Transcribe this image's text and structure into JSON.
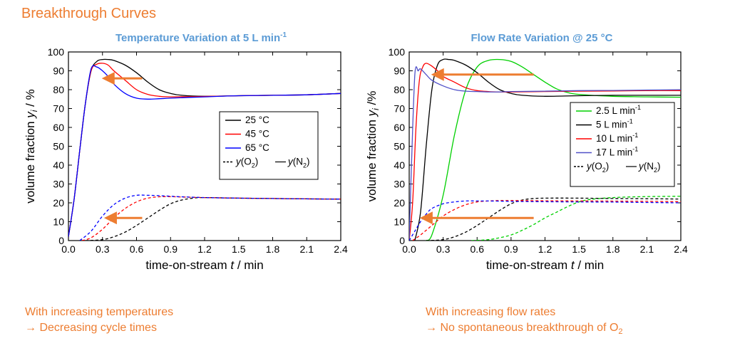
{
  "page": {
    "heading": "Breakthrough Curves",
    "left_note": [
      "With increasing temperatures",
      "→ Decreasing cycle times"
    ],
    "right_note": [
      "With increasing flow rates",
      "→ No spontaneous breakthrough of O",
      "2"
    ]
  },
  "colors": {
    "orange": "#ED7D31",
    "title_blue": "#5B9BD5"
  },
  "chart_data": [
    {
      "type": "line",
      "title": "Temperature Variation at 5 L min",
      "title_sup": "-1",
      "xlabel": "time-on-stream t / min",
      "ylabel": "volume fraction y_i / %",
      "xlim": [
        0,
        2.4
      ],
      "ylim": [
        0,
        100
      ],
      "xticks": [
        "0.0",
        "0.3",
        "0.6",
        "0.9",
        "1.2",
        "1.5",
        "1.8",
        "2.1",
        "2.4"
      ],
      "yticks": [
        "0",
        "10",
        "20",
        "30",
        "40",
        "50",
        "60",
        "70",
        "80",
        "90",
        "100"
      ],
      "legend": {
        "position": "center-right",
        "entries": [
          {
            "label": "25 °C",
            "color": "#000000"
          },
          {
            "label": "45 °C",
            "color": "#FF0000"
          },
          {
            "label": "65 °C",
            "color": "#0000FF"
          }
        ],
        "style_entry": {
          "dashed_label": "y(O",
          "dashed_sub": "2",
          "solid_label": "y(N",
          "solid_sub": "2",
          "close": ")"
        }
      },
      "arrows": [
        {
          "from": [
            0.65,
            86
          ],
          "to": [
            0.3,
            86
          ]
        },
        {
          "from": [
            0.65,
            12
          ],
          "to": [
            0.32,
            12
          ]
        }
      ],
      "series": [
        {
          "name": "25 °C N2",
          "color": "#000000",
          "dash": false,
          "x": [
            0,
            0.05,
            0.1,
            0.15,
            0.2,
            0.25,
            0.3,
            0.35,
            0.4,
            0.5,
            0.6,
            0.7,
            0.8,
            0.9,
            1.0,
            1.2,
            1.5,
            1.8,
            2.1,
            2.4
          ],
          "y": [
            2,
            22,
            48,
            73,
            90,
            95,
            96,
            96,
            95.5,
            93,
            89,
            84,
            80,
            78,
            77,
            76.5,
            76.8,
            77,
            77.3,
            78
          ]
        },
        {
          "name": "45 °C N2",
          "color": "#FF0000",
          "dash": false,
          "x": [
            0,
            0.05,
            0.1,
            0.15,
            0.2,
            0.25,
            0.3,
            0.35,
            0.4,
            0.5,
            0.6,
            0.7,
            0.8,
            0.9,
            1.2,
            1.5,
            1.8,
            2.1,
            2.4
          ],
          "y": [
            2,
            22,
            48,
            73,
            90,
            93.5,
            94,
            93,
            90,
            85,
            80,
            77.5,
            76.5,
            76.2,
            76.4,
            76.8,
            77,
            77.3,
            78
          ]
        },
        {
          "name": "65 °C N2",
          "color": "#0000FF",
          "dash": false,
          "x": [
            0,
            0.05,
            0.1,
            0.15,
            0.2,
            0.25,
            0.3,
            0.35,
            0.4,
            0.5,
            0.6,
            0.7,
            0.8,
            0.9,
            1.2,
            1.5,
            1.8,
            2.1,
            2.4
          ],
          "y": [
            2,
            22,
            48,
            73,
            91,
            92,
            90,
            87,
            83,
            78,
            75.5,
            75,
            75.2,
            75.5,
            76.2,
            76.8,
            77,
            77.3,
            78
          ]
        },
        {
          "name": "25 °C O2",
          "color": "#000000",
          "dash": true,
          "x": [
            0.15,
            0.3,
            0.4,
            0.5,
            0.6,
            0.7,
            0.8,
            0.9,
            1.0,
            1.1,
            1.2,
            1.5,
            1.8,
            2.1,
            2.4
          ],
          "y": [
            0,
            0.5,
            2,
            4.5,
            8,
            12,
            16,
            19.5,
            21.5,
            22.5,
            22.8,
            22.5,
            22.3,
            22.1,
            22
          ]
        },
        {
          "name": "45 °C O2",
          "color": "#FF0000",
          "dash": true,
          "x": [
            0.12,
            0.2,
            0.3,
            0.4,
            0.5,
            0.6,
            0.7,
            0.8,
            0.9,
            1.0,
            1.2,
            1.5,
            1.8,
            2.1,
            2.4
          ],
          "y": [
            0,
            1.5,
            6,
            12,
            17,
            20.5,
            22.5,
            23.2,
            23.3,
            23.1,
            22.8,
            22.5,
            22.3,
            22.1,
            22
          ]
        },
        {
          "name": "65 °C O2",
          "color": "#0000FF",
          "dash": true,
          "x": [
            0.1,
            0.2,
            0.3,
            0.4,
            0.5,
            0.6,
            0.7,
            0.8,
            0.9,
            1.0,
            1.2,
            1.5,
            1.8,
            2.1,
            2.4
          ],
          "y": [
            0,
            5,
            13,
            19,
            22.5,
            24,
            24,
            23.8,
            23.5,
            23.2,
            22.8,
            22.5,
            22.3,
            22.1,
            22
          ]
        }
      ]
    },
    {
      "type": "line",
      "title": "Flow Rate Variation @ 25 °C",
      "title_sup": "",
      "xlabel": "time-on-stream t / min",
      "ylabel": "volume fraction y_i /%",
      "xlim": [
        0,
        2.4
      ],
      "ylim": [
        0,
        100
      ],
      "xticks": [
        "0.0",
        "0.3",
        "0.6",
        "0.9",
        "1.2",
        "1.5",
        "1.8",
        "2.1",
        "2.4"
      ],
      "yticks": [
        "0",
        "10",
        "20",
        "30",
        "40",
        "50",
        "60",
        "70",
        "80",
        "90",
        "100"
      ],
      "legend": {
        "position": "center-right",
        "entries": [
          {
            "label": "2.5 L min",
            "sup": "-1",
            "color": "#00D000"
          },
          {
            "label": "5 L min",
            "sup": "-1",
            "color": "#000000"
          },
          {
            "label": "10 L min",
            "sup": "-1",
            "color": "#FF0000"
          },
          {
            "label": "17 L min",
            "sup": "-1",
            "color": "#5050C8"
          }
        ],
        "style_entry": {
          "dashed_label": "y(O",
          "dashed_sub": "2",
          "solid_label": "y(N",
          "solid_sub": "2",
          "close": ")"
        }
      },
      "arrows": [
        {
          "from": [
            1.1,
            88
          ],
          "to": [
            0.2,
            88
          ]
        },
        {
          "from": [
            1.1,
            12
          ],
          "to": [
            0.1,
            12
          ]
        }
      ],
      "series": [
        {
          "name": "2.5 L/min N2",
          "color": "#00D000",
          "dash": false,
          "x": [
            0.15,
            0.2,
            0.3,
            0.4,
            0.5,
            0.6,
            0.7,
            0.8,
            0.9,
            1.0,
            1.1,
            1.2,
            1.3,
            1.4,
            1.5,
            1.8,
            2.1,
            2.4
          ],
          "y": [
            0,
            3,
            24,
            56,
            80,
            92,
            95.5,
            96,
            95,
            92,
            88,
            84,
            80.5,
            78.5,
            77.5,
            76.5,
            76.2,
            76
          ]
        },
        {
          "name": "5 L/min N2",
          "color": "#000000",
          "dash": false,
          "x": [
            0.05,
            0.1,
            0.15,
            0.2,
            0.25,
            0.3,
            0.35,
            0.4,
            0.5,
            0.6,
            0.7,
            0.8,
            0.9,
            1.0,
            1.2,
            1.5,
            1.8,
            2.1,
            2.4
          ],
          "y": [
            0,
            15,
            50,
            80,
            93,
            96,
            96,
            95.5,
            93,
            89,
            84,
            80,
            78,
            77,
            76.5,
            76.8,
            77,
            77,
            77
          ]
        },
        {
          "name": "10 L/min N2",
          "color": "#FF0000",
          "dash": false,
          "x": [
            0,
            0.03,
            0.06,
            0.09,
            0.12,
            0.15,
            0.2,
            0.25,
            0.3,
            0.4,
            0.5,
            0.6,
            0.7,
            0.8,
            0.9,
            1.2,
            1.5,
            1.8,
            2.1,
            2.4
          ],
          "y": [
            0,
            20,
            60,
            85,
            92,
            94,
            92.5,
            90,
            87,
            84,
            81,
            79.5,
            79,
            78.8,
            78.8,
            79,
            79.2,
            79.3,
            79.5,
            79.5
          ]
        },
        {
          "name": "17 L/min N2",
          "color": "#5050C8",
          "dash": false,
          "x": [
            0,
            0.02,
            0.05,
            0.08,
            0.1,
            0.15,
            0.2,
            0.3,
            0.4,
            0.5,
            0.6,
            0.7,
            0.8,
            0.9,
            1.2,
            1.5,
            1.8,
            2.1,
            2.4
          ],
          "y": [
            0,
            40,
            88,
            90,
            91,
            88,
            85,
            82,
            80,
            79.2,
            79,
            78.8,
            78.8,
            79,
            79.2,
            79.5,
            79.6,
            79.8,
            80
          ]
        },
        {
          "name": "2.5 L/min O2",
          "color": "#00D000",
          "dash": true,
          "x": [
            0.55,
            0.7,
            0.8,
            0.9,
            1.0,
            1.1,
            1.2,
            1.3,
            1.4,
            1.5,
            1.6,
            1.8,
            2.0,
            2.2,
            2.4
          ],
          "y": [
            0,
            0.5,
            1.5,
            3,
            5.5,
            8.5,
            12,
            15,
            18,
            20.5,
            21.8,
            22.8,
            23.2,
            23.4,
            23.5
          ]
        },
        {
          "name": "5 L/min O2",
          "color": "#000000",
          "dash": true,
          "x": [
            0.15,
            0.3,
            0.4,
            0.5,
            0.6,
            0.7,
            0.8,
            0.9,
            1.0,
            1.1,
            1.2,
            1.5,
            1.8,
            2.1,
            2.4
          ],
          "y": [
            0,
            0.5,
            2,
            4.5,
            8,
            12,
            16,
            19.5,
            21.5,
            22.3,
            22.5,
            22.5,
            22.3,
            22.2,
            22
          ]
        },
        {
          "name": "10 L/min O2",
          "color": "#FF0000",
          "dash": true,
          "x": [
            0.03,
            0.1,
            0.2,
            0.3,
            0.4,
            0.5,
            0.6,
            0.7,
            0.8,
            0.9,
            1.0,
            1.2,
            1.5,
            1.8,
            2.1,
            2.4
          ],
          "y": [
            0,
            3,
            8,
            13,
            16.5,
            19,
            20.5,
            21,
            21.2,
            21.2,
            21.2,
            21.1,
            21,
            20.9,
            20.8,
            20.6
          ]
        },
        {
          "name": "17 L/min O2",
          "color": "#0000FF",
          "dash": true,
          "x": [
            0,
            0.05,
            0.1,
            0.15,
            0.2,
            0.3,
            0.4,
            0.5,
            0.6,
            0.7,
            0.8,
            0.9,
            1.0,
            1.2,
            1.5,
            1.8,
            2.1,
            2.4
          ],
          "y": [
            0,
            5,
            10,
            14,
            17,
            19.5,
            20.5,
            21,
            21,
            21,
            20.9,
            20.8,
            20.7,
            20.6,
            20.5,
            20.4,
            20.2,
            20
          ]
        }
      ]
    }
  ]
}
